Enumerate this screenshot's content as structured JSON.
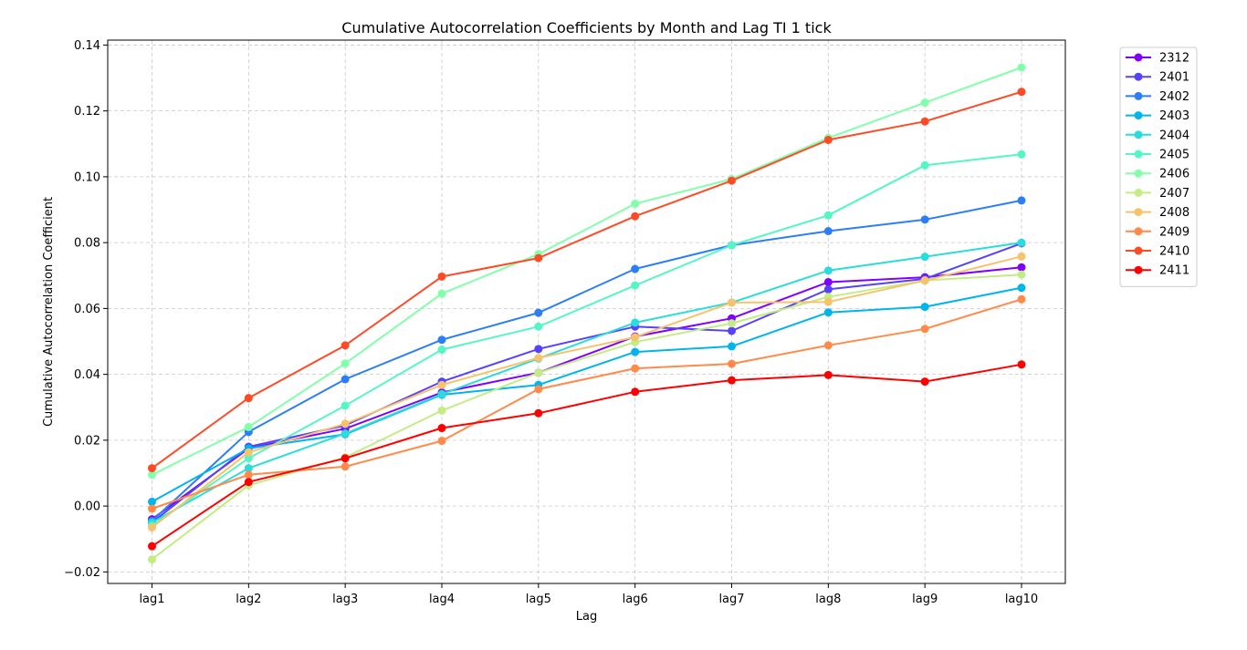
{
  "chart_data": {
    "type": "line",
    "title": "Cumulative Autocorrelation Coefficients by Month and Lag TI 1 tick",
    "xlabel": "Lag",
    "ylabel": "Cumulative Autocorrelation Coefficient",
    "categories": [
      "lag1",
      "lag2",
      "lag3",
      "lag4",
      "lag5",
      "lag6",
      "lag7",
      "lag8",
      "lag9",
      "lag10"
    ],
    "ylim": [
      -0.0235,
      0.1415
    ],
    "yticks": [
      -0.02,
      0.0,
      0.02,
      0.04,
      0.06,
      0.08,
      0.1,
      0.12,
      0.14
    ],
    "ytick_labels": [
      "−0.02",
      "0.00",
      "0.02",
      "0.04",
      "0.06",
      "0.08",
      "0.10",
      "0.12",
      "0.14"
    ],
    "grid": true,
    "legend_position": "outside-top-right",
    "series": [
      {
        "name": "2312",
        "color": "#7f00ff",
        "values": [
          -0.004,
          0.0175,
          0.0235,
          0.0345,
          0.0405,
          0.0515,
          0.057,
          0.068,
          0.0695,
          0.0725
        ]
      },
      {
        "name": "2401",
        "color": "#5641fd",
        "values": [
          -0.005,
          0.018,
          0.0245,
          0.0378,
          0.0477,
          0.0545,
          0.0532,
          0.0658,
          0.069,
          0.0798
        ]
      },
      {
        "name": "2402",
        "color": "#2c7ef7",
        "values": [
          -0.0045,
          0.0225,
          0.0385,
          0.0505,
          0.0587,
          0.072,
          0.0792,
          0.0835,
          0.087,
          0.0928
        ]
      },
      {
        "name": "2403",
        "color": "#00b5eb",
        "values": [
          0.0013,
          0.0175,
          0.0218,
          0.0338,
          0.0368,
          0.0468,
          0.0485,
          0.0588,
          0.0605,
          0.0663
        ]
      },
      {
        "name": "2404",
        "color": "#2adcdc",
        "values": [
          -0.005,
          0.0115,
          0.022,
          0.034,
          0.0448,
          0.0557,
          0.0618,
          0.0715,
          0.0757,
          0.08
        ]
      },
      {
        "name": "2405",
        "color": "#55f6c6",
        "values": [
          -0.006,
          0.0145,
          0.0305,
          0.0475,
          0.0545,
          0.067,
          0.0792,
          0.0883,
          0.1035,
          0.1068
        ]
      },
      {
        "name": "2406",
        "color": "#83ffaa",
        "values": [
          0.0095,
          0.024,
          0.0433,
          0.0645,
          0.0765,
          0.0918,
          0.0993,
          0.1118,
          0.1225,
          0.1332
        ]
      },
      {
        "name": "2407",
        "color": "#c3ec84",
        "values": [
          -0.0162,
          0.0063,
          0.0148,
          0.029,
          0.0405,
          0.0498,
          0.0555,
          0.0635,
          0.0685,
          0.0703
        ]
      },
      {
        "name": "2408",
        "color": "#f6c26b",
        "values": [
          -0.0065,
          0.0163,
          0.025,
          0.0368,
          0.045,
          0.0513,
          0.0618,
          0.062,
          0.0685,
          0.0758
        ]
      },
      {
        "name": "2409",
        "color": "#ff8a4a",
        "values": [
          -0.0008,
          0.0095,
          0.012,
          0.0198,
          0.0355,
          0.0418,
          0.0432,
          0.0488,
          0.0538,
          0.0628
        ]
      },
      {
        "name": "2410",
        "color": "#ff4a26",
        "values": [
          0.0115,
          0.0328,
          0.0488,
          0.0697,
          0.0753,
          0.088,
          0.0988,
          0.1112,
          0.1168,
          0.1258
        ]
      },
      {
        "name": "2411",
        "color": "#ff0000",
        "values": [
          -0.0122,
          0.0073,
          0.0145,
          0.0237,
          0.0282,
          0.0347,
          0.0382,
          0.0398,
          0.0378,
          0.043
        ]
      }
    ]
  }
}
